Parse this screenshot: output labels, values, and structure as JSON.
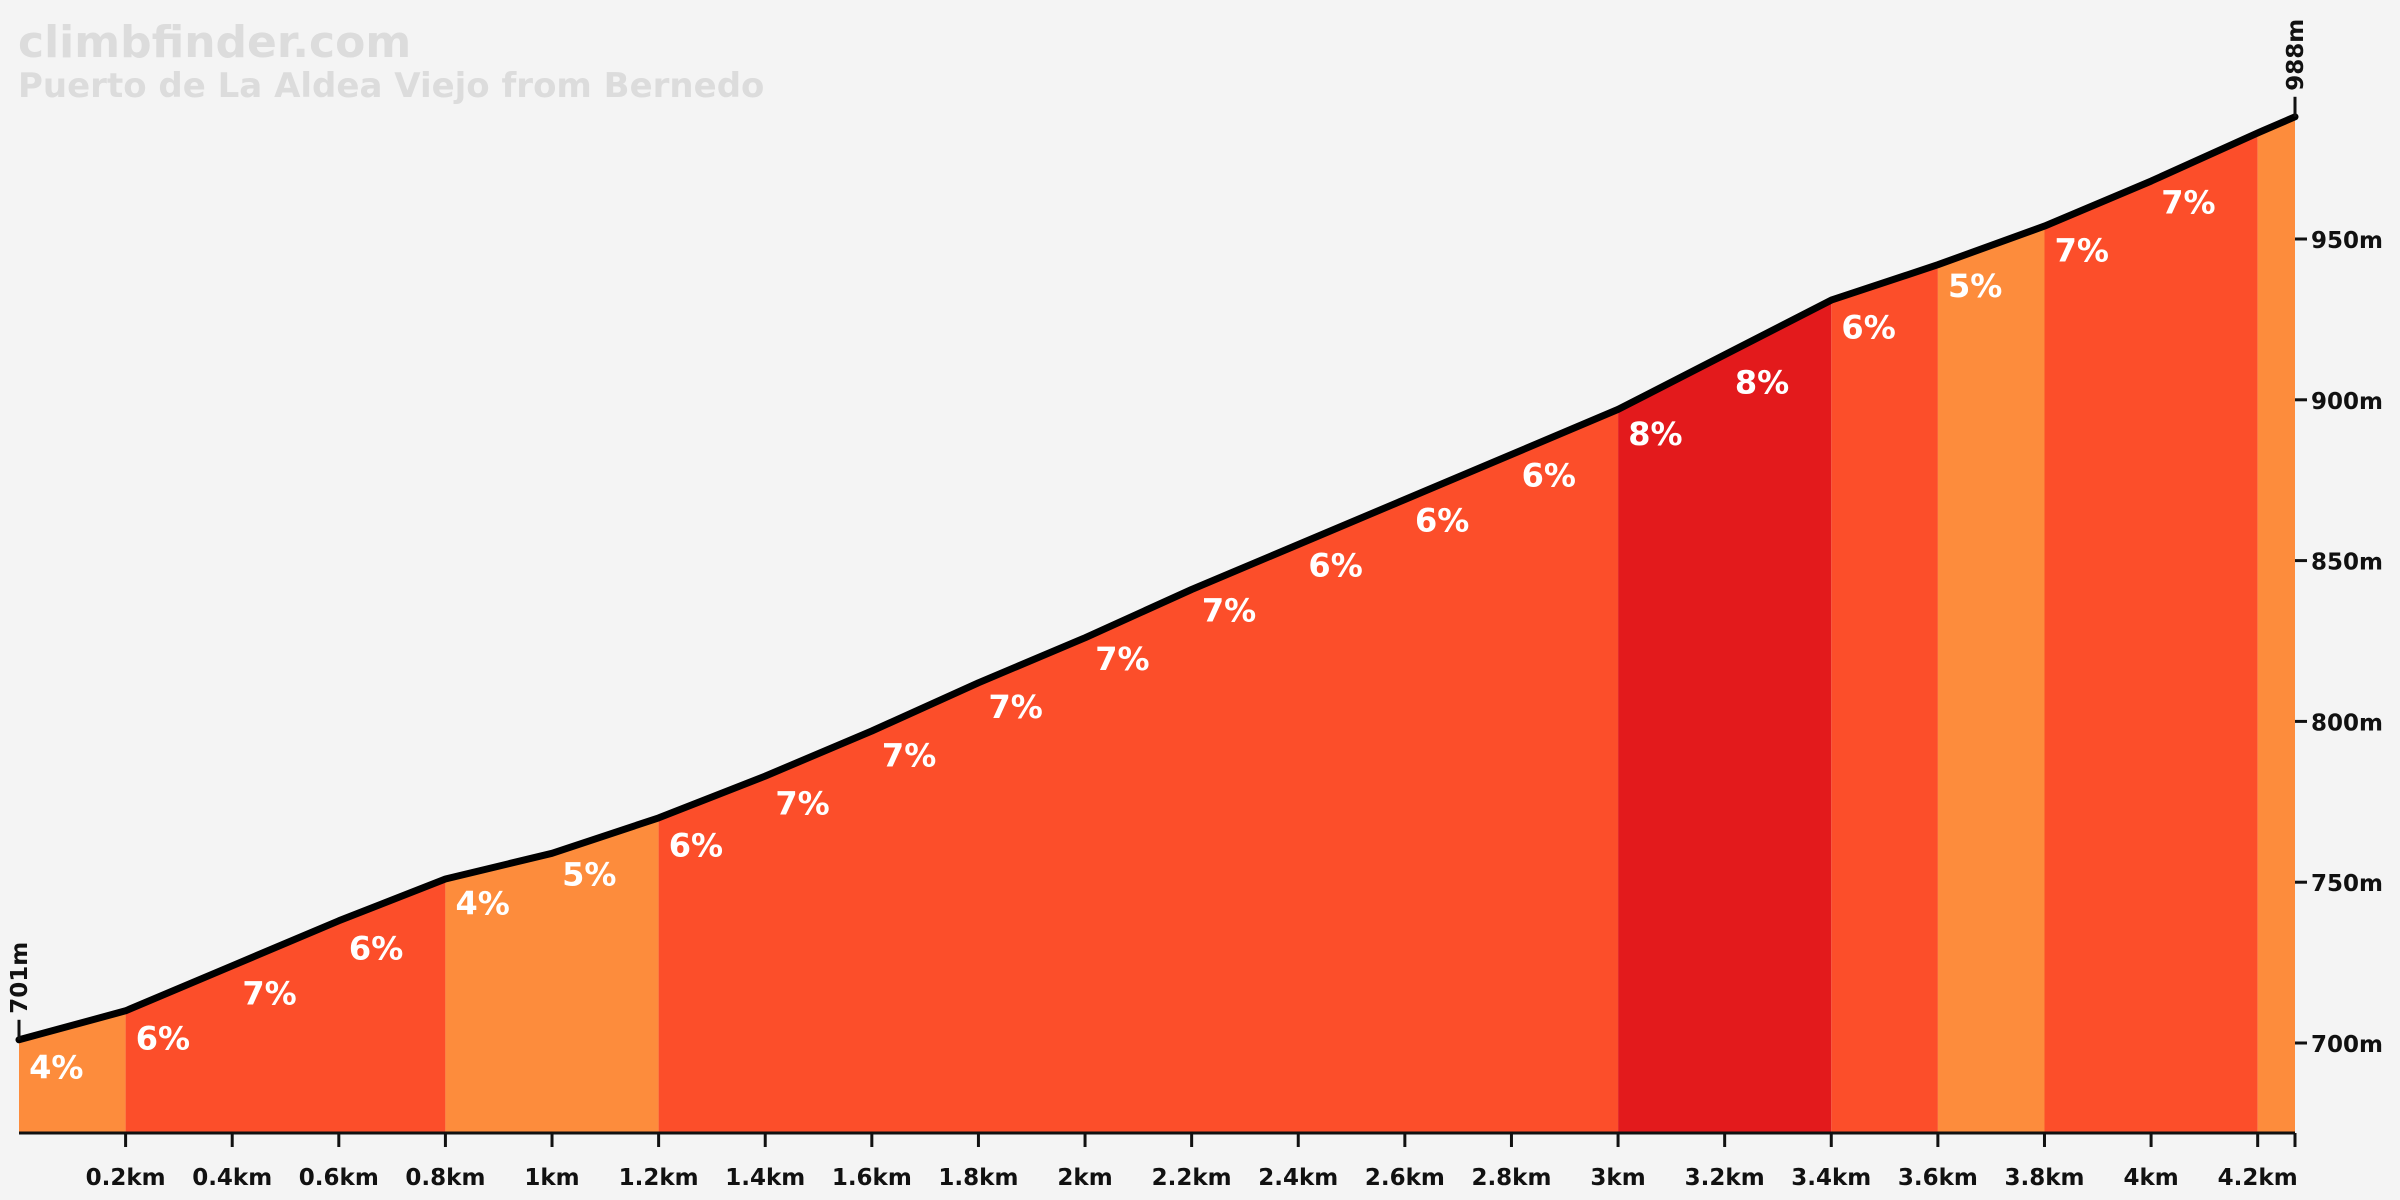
{
  "header": {
    "site": "climbfinder.com",
    "climb_name": "Puerto de La Aldea Viejo from Bernedo"
  },
  "colors": {
    "background": "#f4f4f4",
    "grade_4_5": "#fd8c3c",
    "grade_6_7": "#fc4e2a",
    "grade_8": "#e31a1c",
    "profile_line": "#000000"
  },
  "chart_data": {
    "type": "area",
    "title": "Puerto de La Aldea Viejo from Bernedo",
    "xlabel": "",
    "ylabel": "",
    "xlim": [
      0,
      4.27
    ],
    "ylim": [
      672,
      988
    ],
    "x_ticks": [
      {
        "value": 0.2,
        "label": "0.2km"
      },
      {
        "value": 0.4,
        "label": "0.4km"
      },
      {
        "value": 0.6,
        "label": "0.6km"
      },
      {
        "value": 0.8,
        "label": "0.8km"
      },
      {
        "value": 1.0,
        "label": "1km"
      },
      {
        "value": 1.2,
        "label": "1.2km"
      },
      {
        "value": 1.4,
        "label": "1.4km"
      },
      {
        "value": 1.6,
        "label": "1.6km"
      },
      {
        "value": 1.8,
        "label": "1.8km"
      },
      {
        "value": 2.0,
        "label": "2km"
      },
      {
        "value": 2.2,
        "label": "2.2km"
      },
      {
        "value": 2.4,
        "label": "2.4km"
      },
      {
        "value": 2.6,
        "label": "2.6km"
      },
      {
        "value": 2.8,
        "label": "2.8km"
      },
      {
        "value": 3.0,
        "label": "3km"
      },
      {
        "value": 3.2,
        "label": "3.2km"
      },
      {
        "value": 3.4,
        "label": "3.4km"
      },
      {
        "value": 3.6,
        "label": "3.6km"
      },
      {
        "value": 3.8,
        "label": "3.8km"
      },
      {
        "value": 4.0,
        "label": "4km"
      },
      {
        "value": 4.2,
        "label": "4.2km"
      }
    ],
    "y_ticks": [
      {
        "value": 700,
        "label": "700m"
      },
      {
        "value": 750,
        "label": "750m"
      },
      {
        "value": 800,
        "label": "800m"
      },
      {
        "value": 850,
        "label": "850m"
      },
      {
        "value": 900,
        "label": "900m"
      },
      {
        "value": 950,
        "label": "950m"
      }
    ],
    "start_elevation": {
      "value": 701,
      "label": "701m"
    },
    "end_elevation": {
      "value": 988,
      "label": "988m"
    },
    "profile": [
      [
        0.0,
        701
      ],
      [
        0.2,
        710
      ],
      [
        0.4,
        724
      ],
      [
        0.6,
        738
      ],
      [
        0.8,
        751
      ],
      [
        1.0,
        759
      ],
      [
        1.2,
        770
      ],
      [
        1.4,
        783
      ],
      [
        1.6,
        797
      ],
      [
        1.8,
        812
      ],
      [
        2.0,
        826
      ],
      [
        2.2,
        841
      ],
      [
        2.4,
        855
      ],
      [
        2.6,
        869
      ],
      [
        2.8,
        883
      ],
      [
        3.0,
        897
      ],
      [
        3.2,
        914
      ],
      [
        3.4,
        931
      ],
      [
        3.6,
        942
      ],
      [
        3.8,
        954
      ],
      [
        4.0,
        968
      ],
      [
        4.2,
        983
      ],
      [
        4.27,
        988
      ]
    ],
    "color_bands": [
      {
        "x0": 0.0,
        "x1": 0.2,
        "grade": 4
      },
      {
        "x0": 0.2,
        "x1": 0.8,
        "grade": 6
      },
      {
        "x0": 0.8,
        "x1": 1.2,
        "grade": 4
      },
      {
        "x0": 1.2,
        "x1": 3.0,
        "grade": 6
      },
      {
        "x0": 3.0,
        "x1": 3.4,
        "grade": 8
      },
      {
        "x0": 3.4,
        "x1": 3.6,
        "grade": 6
      },
      {
        "x0": 3.6,
        "x1": 3.8,
        "grade": 5
      },
      {
        "x0": 3.8,
        "x1": 4.2,
        "grade": 7
      },
      {
        "x0": 4.2,
        "x1": 4.27,
        "grade": 5
      }
    ],
    "segment_labels": [
      {
        "x": 0.07,
        "y": 689,
        "label": "4%"
      },
      {
        "x": 0.27,
        "y": 698,
        "label": "6%"
      },
      {
        "x": 0.47,
        "y": 712,
        "label": "7%"
      },
      {
        "x": 0.67,
        "y": 726,
        "label": "6%"
      },
      {
        "x": 0.87,
        "y": 740,
        "label": "4%"
      },
      {
        "x": 1.07,
        "y": 749,
        "label": "5%"
      },
      {
        "x": 1.27,
        "y": 758,
        "label": "6%"
      },
      {
        "x": 1.47,
        "y": 771,
        "label": "7%"
      },
      {
        "x": 1.67,
        "y": 786,
        "label": "7%"
      },
      {
        "x": 1.87,
        "y": 801,
        "label": "7%"
      },
      {
        "x": 2.07,
        "y": 816,
        "label": "7%"
      },
      {
        "x": 2.27,
        "y": 831,
        "label": "7%"
      },
      {
        "x": 2.47,
        "y": 845,
        "label": "6%"
      },
      {
        "x": 2.67,
        "y": 859,
        "label": "6%"
      },
      {
        "x": 2.87,
        "y": 873,
        "label": "6%"
      },
      {
        "x": 3.07,
        "y": 886,
        "label": "8%"
      },
      {
        "x": 3.27,
        "y": 902,
        "label": "8%"
      },
      {
        "x": 3.47,
        "y": 919,
        "label": "6%"
      },
      {
        "x": 3.67,
        "y": 932,
        "label": "5%"
      },
      {
        "x": 3.87,
        "y": 943,
        "label": "7%"
      },
      {
        "x": 4.07,
        "y": 958,
        "label": "7%"
      }
    ]
  }
}
